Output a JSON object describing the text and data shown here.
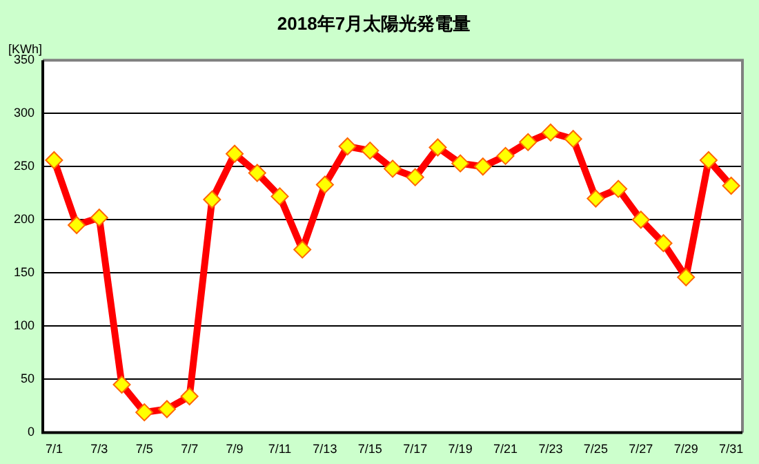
{
  "chart_data": {
    "type": "line",
    "title": "2018年7月太陽光発電量",
    "ylabel": "[KWh]",
    "categories": [
      "7/1",
      null,
      "7/3",
      null,
      "7/5",
      null,
      "7/7",
      null,
      "7/9",
      null,
      "7/11",
      null,
      "7/13",
      null,
      "7/15",
      null,
      "7/17",
      null,
      "7/19",
      null,
      "7/21",
      null,
      "7/23",
      null,
      "7/25",
      null,
      "7/27",
      null,
      "7/29",
      null,
      "7/31"
    ],
    "series": [
      {
        "color": "#ff0000",
        "values": [
          256,
          195,
          202,
          45,
          19,
          22,
          34,
          219,
          262,
          244,
          222,
          172,
          233,
          269,
          265,
          248,
          240,
          268,
          253,
          250,
          260,
          273,
          282,
          276,
          220,
          229,
          200,
          178,
          146,
          256,
          232
        ]
      }
    ],
    "ylim": [
      0,
      350
    ],
    "yticks": [
      0,
      50,
      100,
      150,
      200,
      250,
      300,
      350
    ],
    "grid": "y",
    "marker": "diamond"
  }
}
